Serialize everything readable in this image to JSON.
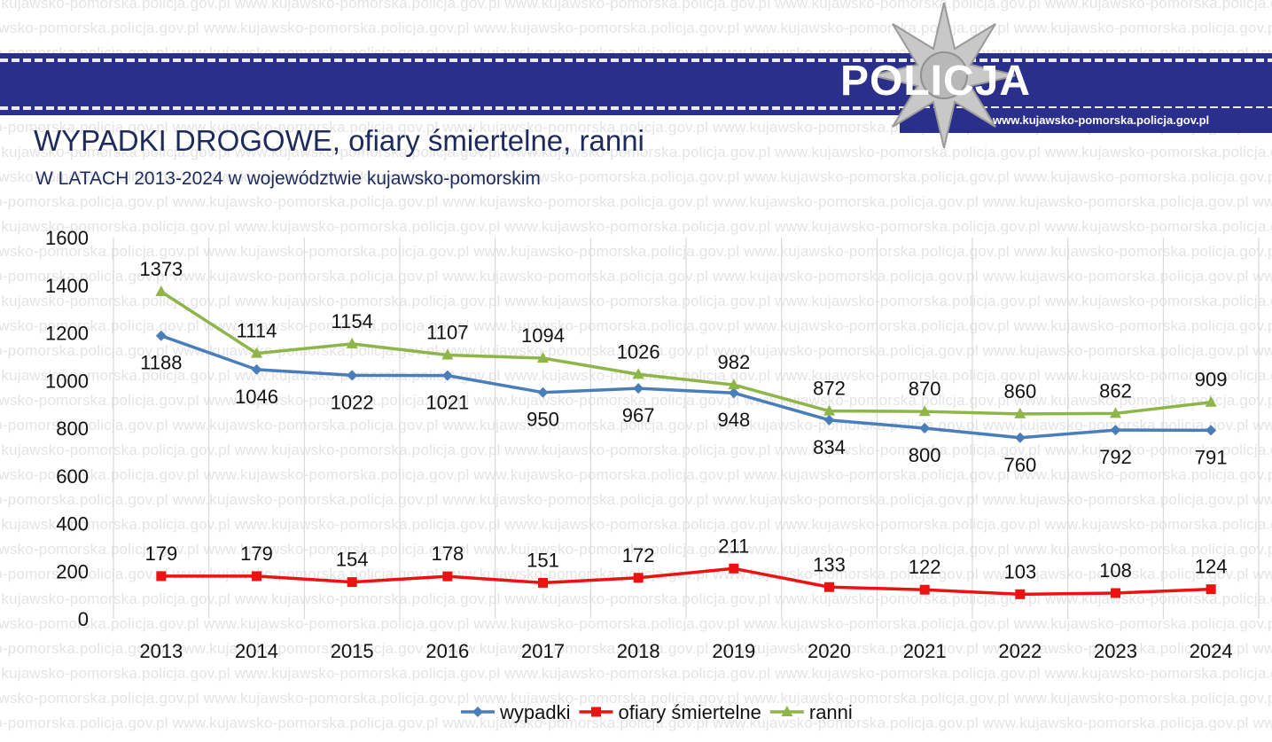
{
  "header": {
    "watermark_text": "www.kujawsko-pomorska.policja.gov.pl",
    "logo_text": "POLICJA",
    "site_url": "www.kujawsko-pomorska.policja.gov.pl",
    "banner_color": "#2b2f8c",
    "star_icon": "police-star-icon"
  },
  "title": "WYPADKI DROGOWE, ofiary śmiertelne, ranni",
  "subtitle": "W LATACH 2013-2024 w województwie kujawsko-pomorskim",
  "chart_data": {
    "type": "line",
    "title": "WYPADKI DROGOWE, ofiary śmiertelne, ranni",
    "subtitle": "W LATACH 2013-2024 w województwie kujawsko-pomorskim",
    "xlabel": "",
    "ylabel": "",
    "ylim": [
      0,
      1600
    ],
    "yticks": [
      0,
      200,
      400,
      600,
      800,
      1000,
      1200,
      1400,
      1600
    ],
    "categories": [
      "2013",
      "2014",
      "2015",
      "2016",
      "2017",
      "2018",
      "2019",
      "2020",
      "2021",
      "2022",
      "2023",
      "2024"
    ],
    "grid": "vertical",
    "legend_position": "bottom",
    "series": [
      {
        "name": "wypadki",
        "color": "#4a7ebb",
        "marker": "diamond",
        "label_position": "below",
        "values": [
          1188,
          1046,
          1022,
          1021,
          950,
          967,
          948,
          834,
          800,
          760,
          792,
          791
        ]
      },
      {
        "name": "ofiary śmiertelne",
        "color": "#ee1111",
        "marker": "square",
        "label_position": "above",
        "values": [
          179,
          179,
          154,
          178,
          151,
          172,
          211,
          133,
          122,
          103,
          108,
          124
        ]
      },
      {
        "name": "ranni",
        "color": "#8db547",
        "marker": "triangle",
        "label_position": "above",
        "values": [
          1373,
          1114,
          1154,
          1107,
          1094,
          1026,
          982,
          872,
          870,
          860,
          862,
          909
        ]
      }
    ]
  }
}
